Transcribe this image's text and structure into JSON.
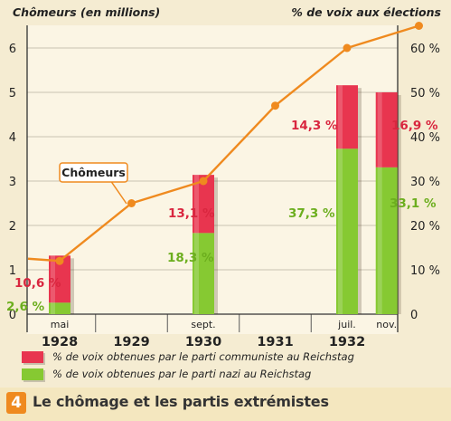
{
  "chart_data": {
    "type": "bar+line",
    "left_axis": {
      "title": "Chômeurs (en millions)",
      "range": [
        0,
        6.5
      ],
      "ticks": [
        "0",
        "1",
        "2",
        "3",
        "4",
        "5",
        "6"
      ]
    },
    "right_axis": {
      "title": "% de voix aux élections",
      "range": [
        0,
        65
      ],
      "ticks": [
        "0",
        "10 %",
        "20 %",
        "30 %",
        "40 %",
        "50 %",
        "60 %"
      ]
    },
    "x_year_labels": [
      "1928",
      "1929",
      "1930",
      "1931",
      "1932"
    ],
    "line_series": {
      "label": "Chômeurs",
      "color": "#ef8a1f",
      "points": [
        {
          "t": 1927.85,
          "v": 1.25
        },
        {
          "t": 1928.0,
          "v": 1.2
        },
        {
          "t": 1929.0,
          "v": 2.5
        },
        {
          "t": 1930.0,
          "v": 3.0
        },
        {
          "t": 1931.0,
          "v": 4.7
        },
        {
          "t": 1932.0,
          "v": 6.0
        },
        {
          "t": 1933.0,
          "v": 6.5
        }
      ]
    },
    "bars": [
      {
        "t": 1928.0,
        "month": "mai",
        "nazi": 2.6,
        "communist": 10.6,
        "nazi_label": "2,6 %",
        "communist_label": "10,6 %"
      },
      {
        "t": 1930.0,
        "month": "sept.",
        "nazi": 18.3,
        "communist": 13.1,
        "nazi_label": "18,3 %",
        "communist_label": "13,1 %"
      },
      {
        "t": 1932.0,
        "month": "juil.",
        "nazi": 37.3,
        "communist": 14.3,
        "nazi_label": "37,3 %",
        "communist_label": "14,3 %"
      },
      {
        "t": 1932.55,
        "month": "nov.",
        "nazi": 33.1,
        "communist": 16.9,
        "nazi_label": "33,1 %",
        "communist_label": "16,9 %"
      }
    ],
    "legend": [
      {
        "label": "% de voix obtenues par le parti communiste au Reichstag",
        "color": "#e8354f"
      },
      {
        "label": "% de voix obtenues par le parti nazi au Reichstag",
        "color": "#86c932"
      }
    ],
    "colors": {
      "nazi": "#86c932",
      "communist": "#e8354f",
      "line": "#ef8a1f",
      "label_green": "#6cae1e",
      "label_red": "#d9263f"
    }
  },
  "caption": {
    "number": "4",
    "text": "Le chômage et les partis extrémistes"
  }
}
